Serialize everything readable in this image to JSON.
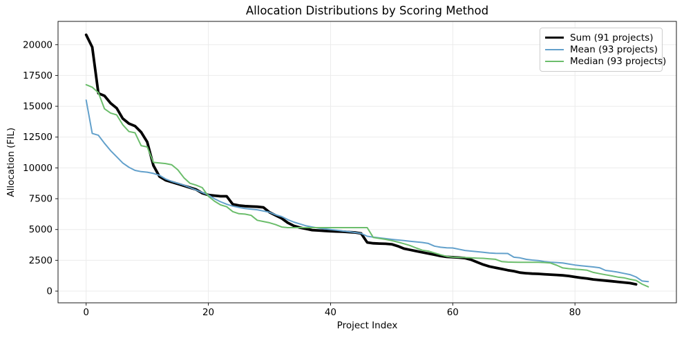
{
  "chart_data": {
    "type": "line",
    "title": "Allocation Distributions by Scoring Method",
    "xlabel": "Project Index",
    "ylabel": "Allocation (FIL)",
    "x_is_index": true,
    "xlim": [
      -4.6,
      96.6
    ],
    "ylim": [
      -950,
      21890
    ],
    "xticks": [
      0,
      20,
      40,
      60,
      80
    ],
    "yticks": [
      0,
      2500,
      5000,
      7500,
      10000,
      12500,
      15000,
      17500,
      20000
    ],
    "grid": true,
    "legend_position": "upper right",
    "background": "#ffffff",
    "grid_color": "#ebebeb",
    "spine_color": "#1a1a1a",
    "series": [
      {
        "name": "Sum (91 projects)",
        "color": "#000000",
        "line_width": 3.8,
        "values": [
          20800,
          19800,
          16050,
          15850,
          15250,
          14850,
          14000,
          13600,
          13400,
          12900,
          12100,
          10200,
          9300,
          9000,
          8850,
          8700,
          8550,
          8400,
          8250,
          7950,
          7800,
          7750,
          7700,
          7700,
          7050,
          6950,
          6900,
          6870,
          6850,
          6800,
          6400,
          6150,
          5900,
          5550,
          5300,
          5150,
          5050,
          4950,
          4920,
          4890,
          4860,
          4840,
          4820,
          4790,
          4760,
          4680,
          3950,
          3880,
          3860,
          3840,
          3800,
          3650,
          3450,
          3350,
          3250,
          3150,
          3050,
          2950,
          2850,
          2780,
          2750,
          2720,
          2680,
          2550,
          2350,
          2150,
          2000,
          1900,
          1800,
          1700,
          1620,
          1500,
          1450,
          1420,
          1400,
          1370,
          1340,
          1310,
          1280,
          1230,
          1150,
          1080,
          1020,
          950,
          900,
          850,
          800,
          750,
          700,
          650,
          550
        ]
      },
      {
        "name": "Mean (93 projects)",
        "color": "#62a0cb",
        "line_width": 2,
        "values": [
          15500,
          12800,
          12650,
          12000,
          11400,
          10900,
          10400,
          10050,
          9800,
          9700,
          9650,
          9550,
          9400,
          9100,
          8900,
          8750,
          8600,
          8400,
          8200,
          8000,
          7800,
          7500,
          7250,
          7050,
          6900,
          6800,
          6700,
          6650,
          6600,
          6500,
          6400,
          6200,
          6050,
          5800,
          5600,
          5450,
          5300,
          5200,
          5120,
          5050,
          5000,
          4940,
          4880,
          4820,
          4760,
          4680,
          4450,
          4380,
          4320,
          4260,
          4200,
          4150,
          4100,
          4050,
          4000,
          3950,
          3870,
          3650,
          3560,
          3510,
          3500,
          3400,
          3300,
          3250,
          3200,
          3150,
          3100,
          3070,
          3060,
          3050,
          2750,
          2700,
          2580,
          2520,
          2480,
          2400,
          2350,
          2320,
          2280,
          2200,
          2120,
          2060,
          2010,
          1960,
          1900,
          1680,
          1620,
          1540,
          1440,
          1340,
          1150,
          820,
          770
        ]
      },
      {
        "name": "Median (93 projects)",
        "color": "#6bbd6b",
        "line_width": 2,
        "values": [
          16750,
          16550,
          16100,
          14800,
          14450,
          14300,
          13500,
          12950,
          12850,
          11800,
          11700,
          10450,
          10400,
          10350,
          10250,
          9850,
          9200,
          8750,
          8600,
          8400,
          7700,
          7300,
          7000,
          6850,
          6450,
          6280,
          6250,
          6150,
          5750,
          5650,
          5550,
          5400,
          5200,
          5150,
          5150,
          5150,
          5150,
          5150,
          5150,
          5150,
          5150,
          5150,
          5150,
          5150,
          5150,
          5150,
          5150,
          4350,
          4280,
          4200,
          4100,
          3980,
          3850,
          3700,
          3500,
          3320,
          3250,
          3100,
          2950,
          2820,
          2760,
          2740,
          2720,
          2700,
          2680,
          2660,
          2620,
          2580,
          2400,
          2360,
          2350,
          2340,
          2340,
          2340,
          2340,
          2320,
          2280,
          2100,
          1880,
          1820,
          1780,
          1740,
          1690,
          1520,
          1420,
          1330,
          1240,
          1140,
          1080,
          960,
          870,
          560,
          350
        ]
      }
    ]
  }
}
